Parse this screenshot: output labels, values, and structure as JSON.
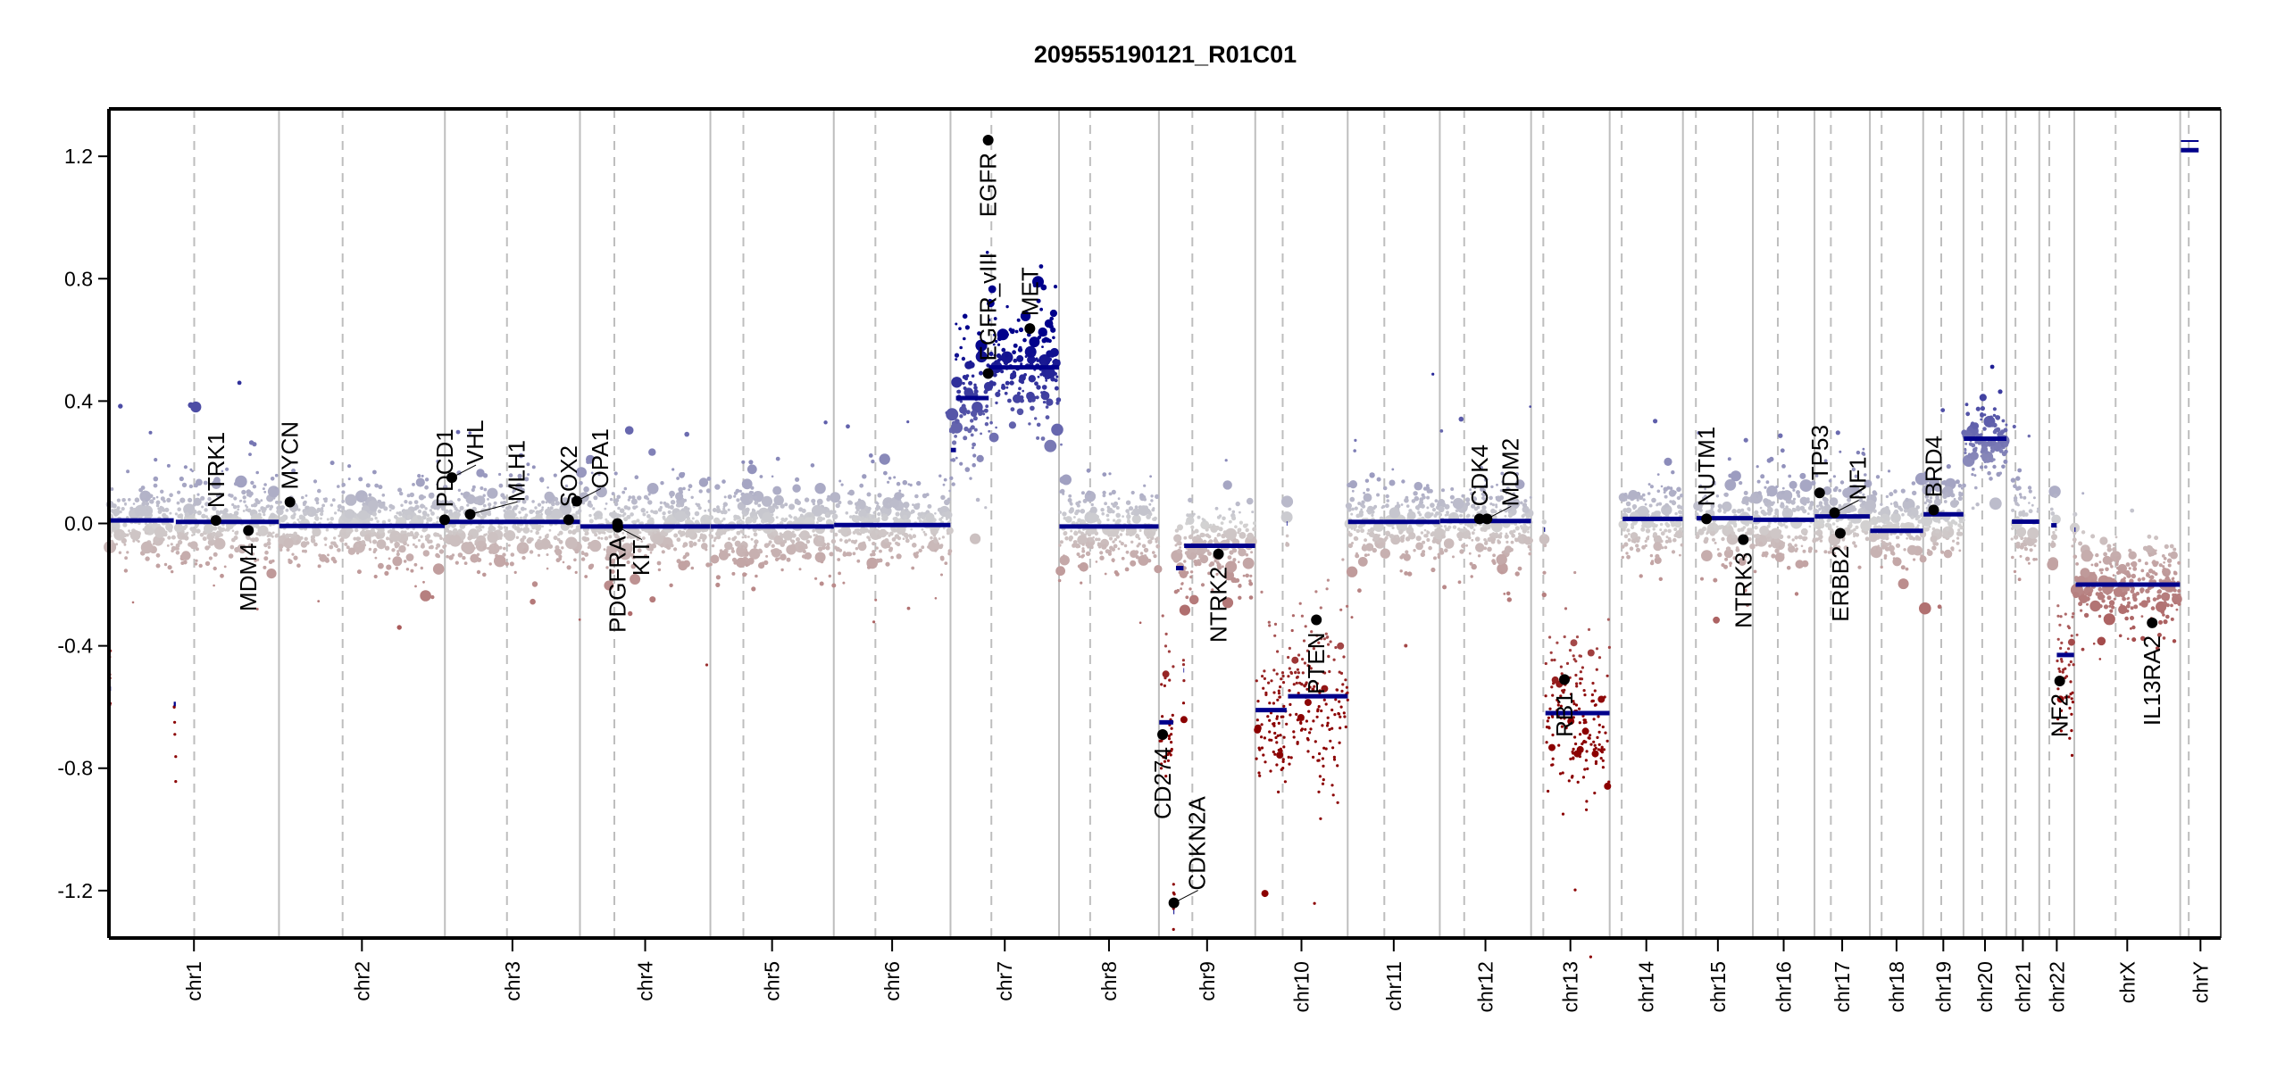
{
  "chart_data": {
    "type": "scatter",
    "title": "209555190121_R01C01",
    "xlabel": "",
    "ylabel": "",
    "ylim": [
      -1.355,
      1.355
    ],
    "yticks": [
      -1.2,
      -0.8,
      -0.4,
      0.0,
      0.4,
      0.8,
      1.2
    ],
    "ytick_labels": [
      "-1.2",
      "-0.8",
      "-0.4",
      "0.0",
      "0.4",
      "0.8",
      "1.2"
    ],
    "grid": "chromosome boundaries (solid) and centromeres (dashed)",
    "colors": {
      "segment": "#00008b",
      "gain": "#00008b",
      "loss": "#8b0000",
      "neutral": "#d3d3d3",
      "gene_point": "#000000",
      "boundary": "#bebebe"
    },
    "chromosomes": [
      {
        "name": "chr1",
        "length_mb": 249.25,
        "centromere_mb": 125.0
      },
      {
        "name": "chr2",
        "length_mb": 243.2,
        "centromere_mb": 93.3
      },
      {
        "name": "chr3",
        "length_mb": 198.0,
        "centromere_mb": 91.0
      },
      {
        "name": "chr4",
        "length_mb": 191.15,
        "centromere_mb": 50.4
      },
      {
        "name": "chr5",
        "length_mb": 180.9,
        "centromere_mb": 48.4
      },
      {
        "name": "chr6",
        "length_mb": 171.1,
        "centromere_mb": 61.0
      },
      {
        "name": "chr7",
        "length_mb": 159.1,
        "centromere_mb": 59.9
      },
      {
        "name": "chr8",
        "length_mb": 146.4,
        "centromere_mb": 45.6
      },
      {
        "name": "chr9",
        "length_mb": 141.2,
        "centromere_mb": 49.0
      },
      {
        "name": "chr10",
        "length_mb": 135.5,
        "centromere_mb": 40.2
      },
      {
        "name": "chr11",
        "length_mb": 135.0,
        "centromere_mb": 53.7
      },
      {
        "name": "chr12",
        "length_mb": 133.85,
        "centromere_mb": 35.8
      },
      {
        "name": "chr13",
        "length_mb": 115.2,
        "centromere_mb": 17.9
      },
      {
        "name": "chr14",
        "length_mb": 107.35,
        "centromere_mb": 17.6
      },
      {
        "name": "chr15",
        "length_mb": 102.5,
        "centromere_mb": 19.0
      },
      {
        "name": "chr16",
        "length_mb": 90.35,
        "centromere_mb": 36.6
      },
      {
        "name": "chr17",
        "length_mb": 81.2,
        "centromere_mb": 24.0
      },
      {
        "name": "chr18",
        "length_mb": 78.1,
        "centromere_mb": 17.2
      },
      {
        "name": "chr19",
        "length_mb": 59.1,
        "centromere_mb": 26.5
      },
      {
        "name": "chr20",
        "length_mb": 63.0,
        "centromere_mb": 27.5
      },
      {
        "name": "chr21",
        "length_mb": 48.1,
        "centromere_mb": 13.2
      },
      {
        "name": "chr22",
        "length_mb": 51.3,
        "centromere_mb": 14.7
      },
      {
        "name": "chrX",
        "length_mb": 155.3,
        "centromere_mb": 60.6
      },
      {
        "name": "chrY",
        "length_mb": 59.4,
        "centromere_mb": 12.5
      }
    ],
    "segments": [
      {
        "chr": "chr1",
        "start": 1,
        "end": 95,
        "value": 0.01
      },
      {
        "chr": "chr1",
        "start": 98,
        "end": 249,
        "value": 0.005
      },
      {
        "chr": "chr1",
        "start": 1,
        "end": 3,
        "value": -0.54
      },
      {
        "chr": "chr1",
        "start": 95,
        "end": 98,
        "value": -0.59
      },
      {
        "chr": "chr2",
        "start": 0.5,
        "end": 243,
        "value": -0.008
      },
      {
        "chr": "chr3",
        "start": 0.5,
        "end": 198,
        "value": 0.005
      },
      {
        "chr": "chr4",
        "start": 0.5,
        "end": 191,
        "value": -0.01
      },
      {
        "chr": "chr5",
        "start": 0.5,
        "end": 181,
        "value": -0.01
      },
      {
        "chr": "chr6",
        "start": 0.5,
        "end": 171,
        "value": -0.005
      },
      {
        "chr": "chr7",
        "start": 0.5,
        "end": 8,
        "value": 0.24
      },
      {
        "chr": "chr7",
        "start": 8,
        "end": 56,
        "value": 0.41
      },
      {
        "chr": "chr7",
        "start": 56,
        "end": 159,
        "value": 0.51
      },
      {
        "chr": "chr8",
        "start": 0.5,
        "end": 146,
        "value": -0.01
      },
      {
        "chr": "chr9",
        "start": 0.5,
        "end": 21,
        "value": -0.65
      },
      {
        "chr": "chr9",
        "start": 21.3,
        "end": 22.6,
        "value": -1.27
      },
      {
        "chr": "chr9",
        "start": 25,
        "end": 36,
        "value": -0.146
      },
      {
        "chr": "chr9",
        "start": 36,
        "end": 37,
        "value": -0.48
      },
      {
        "chr": "chr9",
        "start": 37,
        "end": 141,
        "value": -0.073
      },
      {
        "chr": "chr10",
        "start": 0.5,
        "end": 46,
        "value": -0.61
      },
      {
        "chr": "chr10",
        "start": 46,
        "end": 47,
        "value": 0.0
      },
      {
        "chr": "chr10",
        "start": 48,
        "end": 135.5,
        "value": -0.565
      },
      {
        "chr": "chr11",
        "start": 0.5,
        "end": 135,
        "value": 0.005
      },
      {
        "chr": "chr12",
        "start": 0.5,
        "end": 133.8,
        "value": 0.008
      },
      {
        "chr": "chr13",
        "start": 19,
        "end": 20.5,
        "value": -0.02
      },
      {
        "chr": "chr13",
        "start": 21,
        "end": 115,
        "value": -0.62
      },
      {
        "chr": "chr14",
        "start": 19,
        "end": 107,
        "value": 0.015
      },
      {
        "chr": "chr15",
        "start": 20,
        "end": 102.5,
        "value": 0.017
      },
      {
        "chr": "chr16",
        "start": 0.5,
        "end": 90,
        "value": 0.012
      },
      {
        "chr": "chr17",
        "start": 0.5,
        "end": 81,
        "value": 0.023
      },
      {
        "chr": "chr18",
        "start": 0.5,
        "end": 78,
        "value": -0.024
      },
      {
        "chr": "chr19",
        "start": 0.5,
        "end": 59,
        "value": 0.03
      },
      {
        "chr": "chr20",
        "start": 0.5,
        "end": 63,
        "value": 0.277
      },
      {
        "chr": "chr21",
        "start": 8,
        "end": 48,
        "value": 0.006
      },
      {
        "chr": "chr22",
        "start": 17.5,
        "end": 25.5,
        "value": -0.006
      },
      {
        "chr": "chr22",
        "start": 25.7,
        "end": 51,
        "value": -0.43
      },
      {
        "chr": "chrX",
        "start": 0.3,
        "end": 1.8,
        "value": -0.02
      },
      {
        "chr": "chrX",
        "start": 2,
        "end": 155,
        "value": -0.2
      },
      {
        "chr": "chrY",
        "start": 1,
        "end": 27,
        "value": 1.25
      },
      {
        "chr": "chrY",
        "start": 1,
        "end": 27,
        "value": 1.22
      }
    ],
    "genes": [
      {
        "name": "NTRK1",
        "chr": "chr1",
        "pos": 156.8,
        "value": 0.01,
        "label_side": "above"
      },
      {
        "name": "MDM4",
        "chr": "chr1",
        "pos": 204.5,
        "value": -0.023,
        "label_side": "below"
      },
      {
        "name": "MYCN",
        "chr": "chr2",
        "pos": 16.1,
        "value": 0.07,
        "label_side": "above"
      },
      {
        "name": "PDCD1",
        "chr": "chr2",
        "pos": 242.8,
        "value": 0.012,
        "label_side": "above"
      },
      {
        "name": "VHL",
        "chr": "chr3",
        "pos": 10.2,
        "value": 0.15,
        "label_side": "above"
      },
      {
        "name": "MLH1",
        "chr": "chr3",
        "pos": 37.0,
        "value": 0.03,
        "label_side": "above"
      },
      {
        "name": "SOX2",
        "chr": "chr3",
        "pos": 181.4,
        "value": 0.012,
        "label_side": "above"
      },
      {
        "name": "OPA1",
        "chr": "chr3",
        "pos": 193.3,
        "value": 0.073,
        "label_side": "above"
      },
      {
        "name": "PDGFRA",
        "chr": "chr4",
        "pos": 55.1,
        "value": 0.0,
        "label_side": "below"
      },
      {
        "name": "KIT",
        "chr": "chr4",
        "pos": 55.5,
        "value": -0.012,
        "label_side": "below"
      },
      {
        "name": "EGFR",
        "chr": "chr7",
        "pos": 55.2,
        "value": 1.253,
        "label_side": "below"
      },
      {
        "name": "EGFR_vIII",
        "chr": "chr7",
        "pos": 55.2,
        "value": 0.49,
        "label_side": "above"
      },
      {
        "name": "MET",
        "chr": "chr7",
        "pos": 116.3,
        "value": 0.637,
        "label_side": "above"
      },
      {
        "name": "CD274",
        "chr": "chr9",
        "pos": 5.45,
        "value": -0.69,
        "label_side": "below"
      },
      {
        "name": "CDKN2A",
        "chr": "chr9",
        "pos": 21.97,
        "value": -1.24,
        "label_side": "above"
      },
      {
        "name": "NTRK2",
        "chr": "chr9",
        "pos": 87.3,
        "value": -0.1,
        "label_side": "below"
      },
      {
        "name": "PTEN",
        "chr": "chr10",
        "pos": 89.6,
        "value": -0.315,
        "label_side": "below"
      },
      {
        "name": "CDK4",
        "chr": "chr12",
        "pos": 58.1,
        "value": 0.015,
        "label_side": "above"
      },
      {
        "name": "MDM2",
        "chr": "chr12",
        "pos": 69.2,
        "value": 0.015,
        "label_side": "above"
      },
      {
        "name": "RB1",
        "chr": "chr13",
        "pos": 48.9,
        "value": -0.51,
        "label_side": "below"
      },
      {
        "name": "NUTM1",
        "chr": "chr15",
        "pos": 34.6,
        "value": 0.015,
        "label_side": "above"
      },
      {
        "name": "NTRK3",
        "chr": "chr15",
        "pos": 88.5,
        "value": -0.053,
        "label_side": "below"
      },
      {
        "name": "TP53",
        "chr": "chr17",
        "pos": 7.5,
        "value": 0.1,
        "label_side": "above"
      },
      {
        "name": "NF1",
        "chr": "chr17",
        "pos": 29.5,
        "value": 0.035,
        "label_side": "above"
      },
      {
        "name": "ERBB2",
        "chr": "chr17",
        "pos": 37.8,
        "value": -0.032,
        "label_side": "below"
      },
      {
        "name": "BRD4",
        "chr": "chr19",
        "pos": 15.4,
        "value": 0.044,
        "label_side": "above"
      },
      {
        "name": "NF2",
        "chr": "chr22",
        "pos": 30.0,
        "value": -0.515,
        "label_side": "below"
      },
      {
        "name": "IL13RA2",
        "chr": "chrX",
        "pos": 114.2,
        "value": -0.325,
        "label_side": "below"
      }
    ]
  }
}
